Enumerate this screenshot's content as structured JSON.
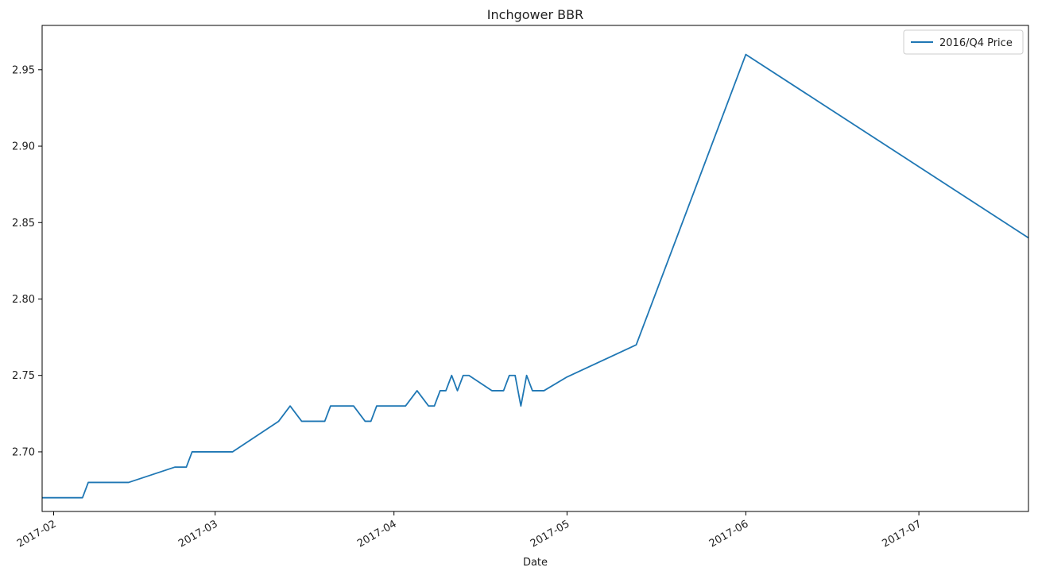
{
  "chart_data": {
    "type": "line",
    "title": "Inchgower BBR",
    "xlabel": "Date",
    "ylabel": "",
    "x_axis_type": "date",
    "xlim": [
      "2017-01-30",
      "2017-07-20"
    ],
    "ylim": [
      2.661,
      2.979
    ],
    "x_ticks": [
      "2017-02",
      "2017-03",
      "2017-04",
      "2017-05",
      "2017-06",
      "2017-07"
    ],
    "y_ticks": [
      "2.70",
      "2.75",
      "2.80",
      "2.85",
      "2.90",
      "2.95"
    ],
    "y_tick_values": [
      2.7,
      2.75,
      2.8,
      2.85,
      2.9,
      2.95
    ],
    "grid": false,
    "legend_position": "top-right",
    "series": [
      {
        "name": "2016/Q4 Price",
        "color": "#1f77b4",
        "x": [
          "2017-01-30",
          "2017-02-06",
          "2017-02-07",
          "2017-02-14",
          "2017-02-22",
          "2017-02-24",
          "2017-02-25",
          "2017-03-04",
          "2017-03-12",
          "2017-03-14",
          "2017-03-16",
          "2017-03-20",
          "2017-03-21",
          "2017-03-25",
          "2017-03-27",
          "2017-03-28",
          "2017-03-29",
          "2017-04-03",
          "2017-04-05",
          "2017-04-07",
          "2017-04-08",
          "2017-04-09",
          "2017-04-10",
          "2017-04-11",
          "2017-04-12",
          "2017-04-13",
          "2017-04-14",
          "2017-04-18",
          "2017-04-20",
          "2017-04-21",
          "2017-04-22",
          "2017-04-23",
          "2017-04-24",
          "2017-04-25",
          "2017-04-27",
          "2017-05-01",
          "2017-05-13",
          "2017-06-01",
          "2017-07-20"
        ],
        "y": [
          2.67,
          2.67,
          2.68,
          2.68,
          2.69,
          2.69,
          2.7,
          2.7,
          2.72,
          2.73,
          2.72,
          2.72,
          2.73,
          2.73,
          2.72,
          2.72,
          2.73,
          2.73,
          2.74,
          2.73,
          2.73,
          2.74,
          2.74,
          2.75,
          2.74,
          2.75,
          2.75,
          2.74,
          2.74,
          2.75,
          2.75,
          2.73,
          2.75,
          2.74,
          2.74,
          2.749,
          2.77,
          2.96,
          2.84
        ]
      }
    ]
  }
}
